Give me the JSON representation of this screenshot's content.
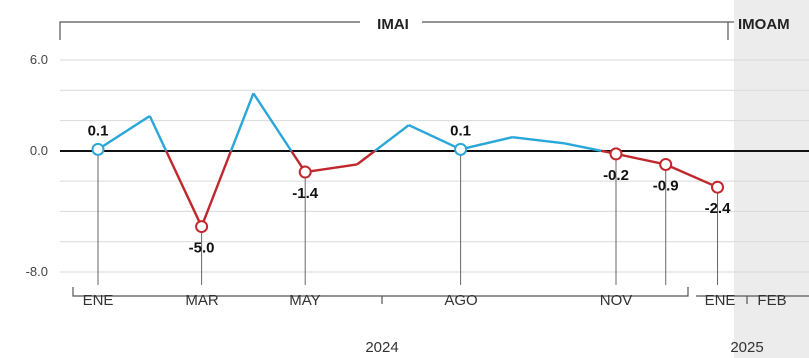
{
  "chart_data": {
    "type": "line",
    "ylim": [
      -8.0,
      6.0
    ],
    "yticks": [
      "6.0",
      "0.0",
      "-8.0"
    ],
    "grid": true,
    "bands": [
      {
        "label": "IMAI"
      },
      {
        "label": "IMOAM"
      }
    ],
    "x_tick_labels": [
      "ENE",
      "MAR",
      "MAY",
      "AGO",
      "NOV",
      "ENE",
      "FEB"
    ],
    "years": [
      "2024",
      "2025"
    ],
    "points": [
      {
        "x": "2024-01",
        "y": 0.1,
        "marker": true,
        "label": "0.1"
      },
      {
        "x": "2024-02",
        "y": 2.3
      },
      {
        "x": "2024-03",
        "y": -5.0,
        "marker": true,
        "label": "-5.0"
      },
      {
        "x": "2024-04",
        "y": 3.8
      },
      {
        "x": "2024-05",
        "y": -1.4,
        "marker": true,
        "label": "-1.4"
      },
      {
        "x": "2024-06",
        "y": -0.9
      },
      {
        "x": "2024-07",
        "y": 1.7
      },
      {
        "x": "2024-08",
        "y": 0.1,
        "marker": true,
        "label": "0.1"
      },
      {
        "x": "2024-09",
        "y": 0.9
      },
      {
        "x": "2024-10",
        "y": 0.5
      },
      {
        "x": "2024-11",
        "y": -0.2,
        "marker": true,
        "label": "-0.2"
      },
      {
        "x": "2025-01",
        "y": -0.9,
        "marker": true,
        "label": "-0.9"
      },
      {
        "x": "2025-02",
        "y": -2.4,
        "marker": true,
        "label": "-2.4"
      }
    ],
    "colors": {
      "positive": "#2aa7d9",
      "negative": "#c0282d",
      "zero_line": "#111111",
      "shade": "#ececec"
    }
  }
}
